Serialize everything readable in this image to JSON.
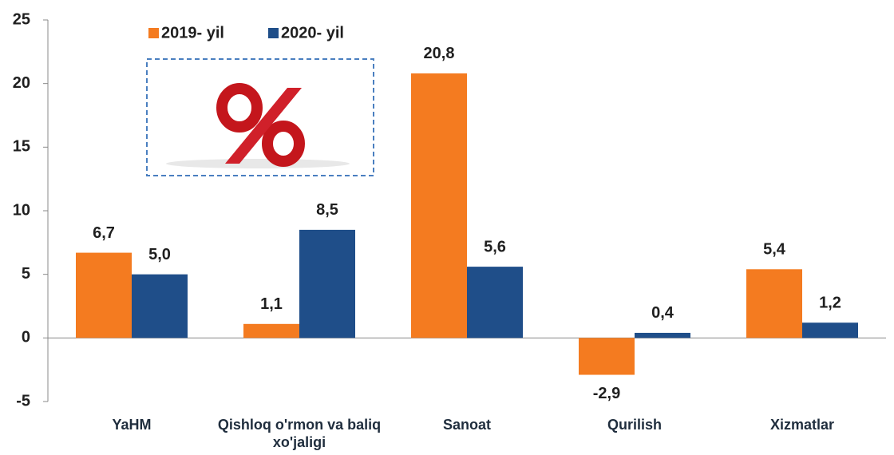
{
  "chart_data": {
    "type": "bar",
    "categories": [
      "YaHM",
      "Qishloq o'rmon va baliq xo'jaligi",
      "Sanoat",
      "Qurilish",
      "Xizmatlar"
    ],
    "series": [
      {
        "name": "2019- yil",
        "color": "#f47b20",
        "values": [
          6.7,
          1.1,
          20.8,
          -2.9,
          5.4
        ],
        "value_labels": [
          "6,7",
          "1,1",
          "20,8",
          "-2,9",
          "5,4"
        ]
      },
      {
        "name": "2020- yil",
        "color": "#1f4e89",
        "values": [
          5.0,
          8.5,
          5.6,
          0.4,
          1.2
        ],
        "value_labels": [
          "5,0",
          "8,5",
          "5,6",
          "0,4",
          "1,2"
        ]
      }
    ],
    "ylim": [
      -5,
      25
    ],
    "yticks": [
      -5,
      0,
      5,
      10,
      15,
      20,
      25
    ],
    "grid": false,
    "legend": "top-left"
  }
}
